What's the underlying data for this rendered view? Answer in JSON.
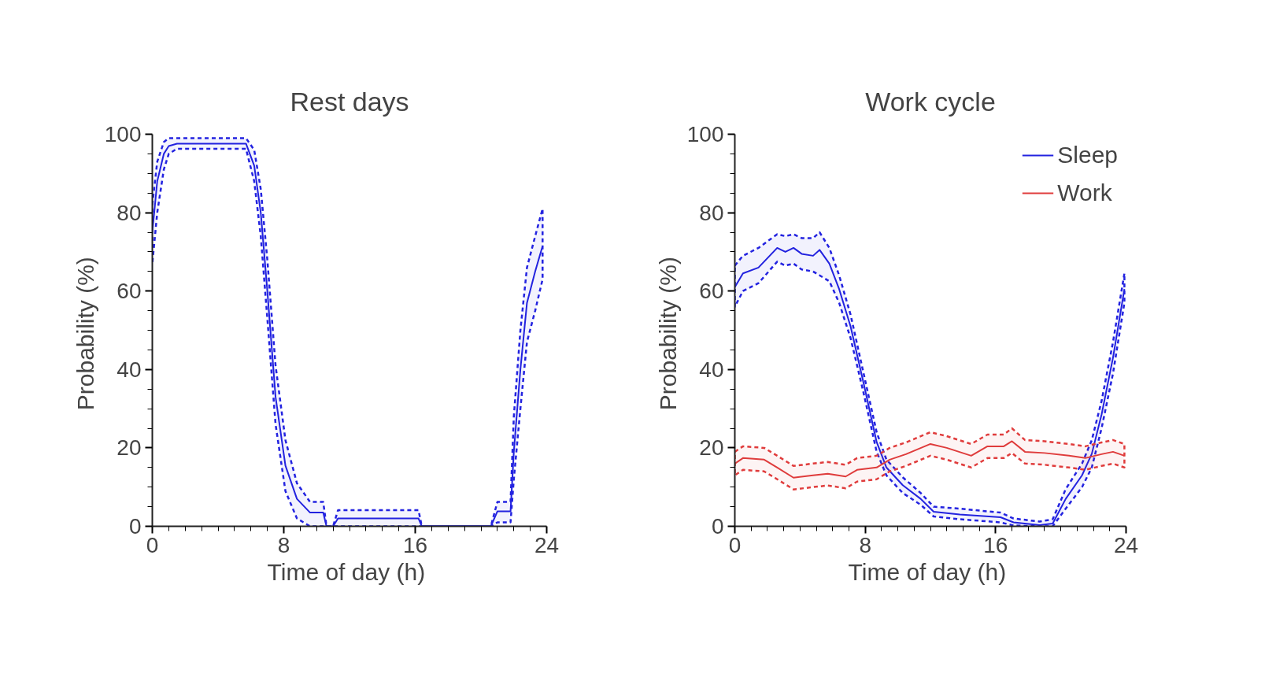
{
  "chart_data": [
    {
      "type": "line",
      "title": "Rest days",
      "xlabel": "Time of day  (h)",
      "ylabel": "Probability  (%)",
      "xlim": [
        0,
        24
      ],
      "ylim": [
        0,
        100
      ],
      "xticks": [
        0,
        8,
        16,
        24
      ],
      "yticks": [
        0,
        20,
        40,
        60,
        80,
        100
      ],
      "grid": false,
      "legend": false,
      "series": [
        {
          "color": "#2323e0",
          "x": [
            0,
            0.3,
            0.7,
            1,
            1.5,
            3,
            5,
            5.7,
            6.2,
            6.6,
            7,
            7.5,
            8.1,
            8.8,
            9.6,
            10.4,
            10.6,
            11,
            11.3,
            16.2,
            16.4,
            20.6,
            21,
            21.8,
            22,
            22.4,
            22.8,
            23.3,
            23.75
          ],
          "values": [
            75,
            88,
            95,
            97,
            97.6,
            97.6,
            97.6,
            97.6,
            92,
            80,
            60,
            33,
            15.5,
            7,
            3.5,
            3.5,
            0,
            0,
            2,
            2,
            0,
            0,
            3.8,
            3.8,
            19,
            40,
            57,
            65,
            71.5
          ],
          "upper": [
            82,
            93,
            98,
            99,
            99,
            99,
            99,
            99,
            96,
            86,
            68,
            41,
            22,
            11,
            6.2,
            6.2,
            0,
            0,
            4.1,
            4.1,
            0,
            0,
            6.2,
            6.2,
            28,
            50,
            66,
            74,
            81
          ],
          "lower": [
            67,
            80,
            91,
            95,
            96.3,
            96.3,
            96.3,
            96.3,
            88,
            74,
            53,
            26,
            9,
            2,
            0,
            0,
            0,
            0,
            0,
            0,
            0,
            0,
            1,
            1,
            12,
            30,
            47,
            55,
            63
          ]
        }
      ]
    },
    {
      "type": "line",
      "title": "Work cycle",
      "xlabel": "Time of day  (h)",
      "ylabel": "Probability  (%)",
      "xlim": [
        0,
        24
      ],
      "ylim": [
        0,
        100
      ],
      "xticks": [
        0,
        8,
        16,
        24
      ],
      "yticks": [
        0,
        20,
        40,
        60,
        80,
        100
      ],
      "grid": false,
      "legend": "top right",
      "series": [
        {
          "name": "Sleep",
          "color": "#2323e0",
          "x": [
            0,
            0.5,
            1.45,
            2.6,
            3.1,
            3.6,
            4.1,
            4.8,
            5.2,
            5.8,
            6.4,
            7.1,
            7.9,
            8.7,
            9.3,
            10.3,
            11.4,
            12.2,
            13.8,
            16.3,
            17.1,
            18.7,
            19.5,
            20.3,
            21.3,
            21.9,
            22.5,
            23.2,
            23.9
          ],
          "values": [
            61,
            64.5,
            66,
            71,
            70,
            71,
            69.5,
            69,
            70.5,
            67,
            60.5,
            51,
            36.5,
            21.5,
            15,
            10.5,
            7,
            3.7,
            3,
            2.3,
            1,
            0.3,
            0.7,
            7,
            13,
            18.5,
            28.5,
            43,
            60.5
          ],
          "upper": [
            66.5,
            69,
            71,
            74.5,
            74,
            74.5,
            73.5,
            73.5,
            75,
            71,
            64,
            54,
            39,
            24,
            17,
            12.5,
            8.5,
            5,
            4.5,
            3.5,
            2,
            1.2,
            1.8,
            9.5,
            16,
            22,
            32,
            47,
            64.5
          ],
          "lower": [
            56,
            60,
            62,
            67.5,
            66.5,
            67,
            65.5,
            65,
            64,
            62.5,
            57,
            48,
            34,
            19,
            13,
            8.5,
            5.5,
            2.5,
            1.8,
            1,
            0.2,
            0,
            0,
            4.5,
            10,
            15,
            25,
            39,
            57
          ]
        },
        {
          "name": "Work",
          "color": "#e03c3c",
          "x": [
            0,
            0.5,
            1.8,
            2.6,
            3.6,
            4.8,
            5.7,
            6.8,
            7.5,
            8.7,
            9.5,
            10.5,
            12,
            13,
            14.5,
            15.5,
            16.5,
            17,
            17.8,
            19,
            20.5,
            21.5,
            22.5,
            23.2,
            23.9
          ],
          "values": [
            16,
            17.4,
            17,
            15,
            12.4,
            13,
            13.4,
            12.7,
            14.4,
            15,
            17,
            18.4,
            21,
            20,
            18,
            20.4,
            20.4,
            21.7,
            19,
            18.7,
            18,
            17.4,
            18.4,
            19,
            18
          ],
          "upper": [
            19,
            20.4,
            20,
            18,
            15.4,
            16,
            16.4,
            15.7,
            17.4,
            18,
            20,
            21.4,
            24,
            23,
            21,
            23.4,
            23.4,
            25,
            22,
            21.7,
            21,
            20.4,
            21.4,
            22,
            21
          ],
          "lower": [
            13,
            14.4,
            14,
            12,
            9.4,
            10,
            10.4,
            9.7,
            11.4,
            12,
            14,
            15.4,
            18,
            17,
            15,
            17.4,
            17.4,
            18.7,
            16,
            15.7,
            15,
            14.4,
            15.4,
            16,
            15
          ]
        }
      ]
    }
  ]
}
